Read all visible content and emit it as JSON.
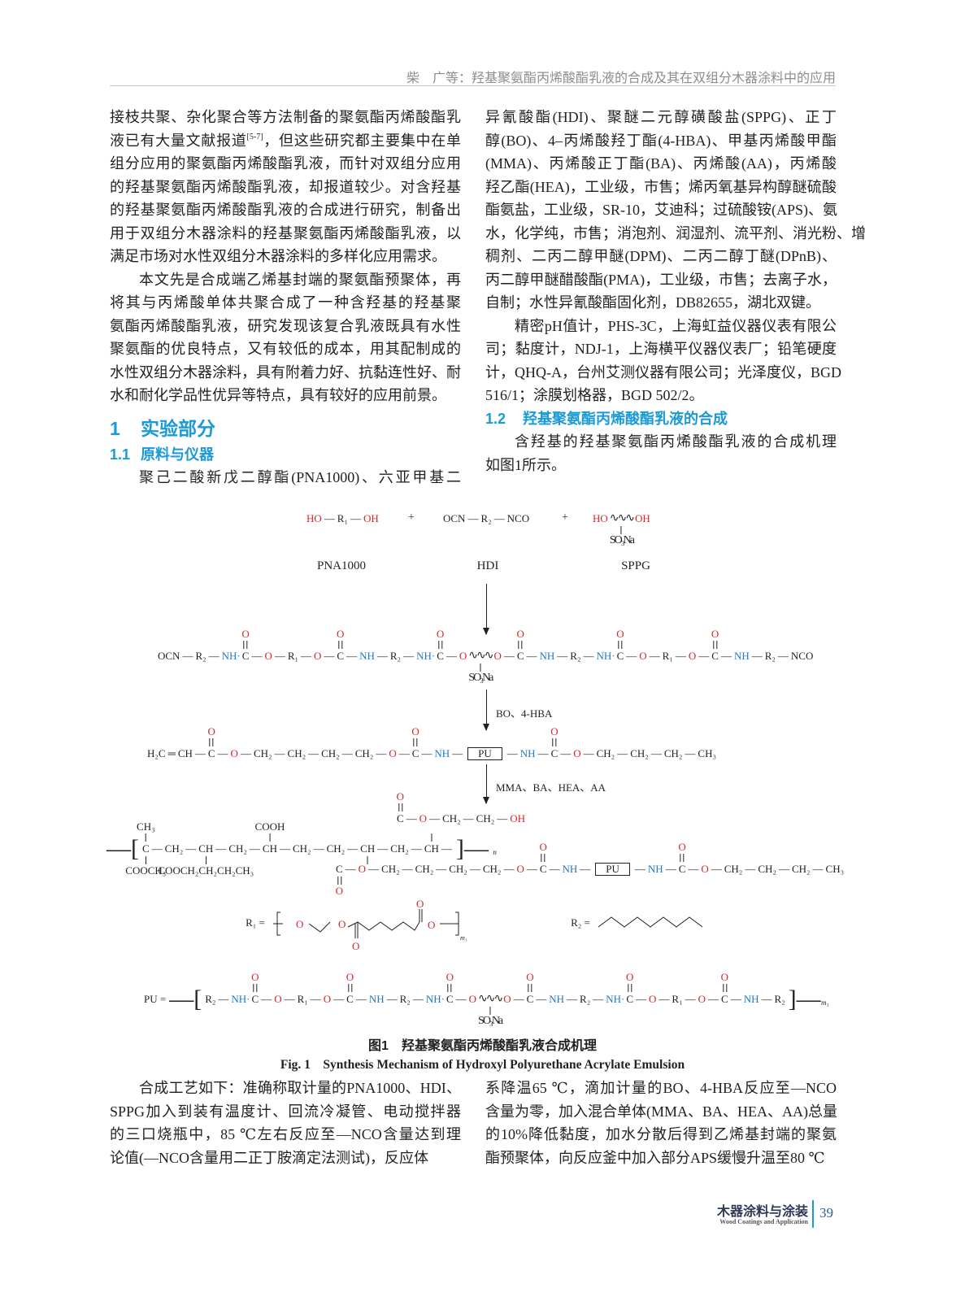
{
  "header": {
    "running_title": "柴　广等：羟基聚氨酯丙烯酸酯乳液的合成及其在双组分木器涂料中的应用"
  },
  "left_column": {
    "paragraphs": [
      {
        "indent": false,
        "lines": [
          "接枝共聚、杂化聚合等方法制备的聚氨酯丙烯酸酯乳",
          "液已有大量文献报道[5-7]，但这些研究都主要集中在单",
          "组分应用的聚氨酯丙烯酸酯乳液，而针对双组分应用",
          "的羟基聚氨酯丙烯酸酯乳液，却报道较少。对含羟基",
          "的羟基聚氨酯丙烯酸酯乳液的合成进行研究，制备出",
          "用于双组分木器涂料的羟基聚氨酯丙烯酸酯乳液，以",
          "满足市场对水性双组分木器涂料的多样化应用需求。"
        ]
      },
      {
        "indent": true,
        "lines": [
          "本文先是合成端乙烯基封端的聚氨酯预聚体，再",
          "将其与丙烯酸单体共聚合成了一种含羟基的羟基聚",
          "氨酯丙烯酸酯乳液，研究发现该复合乳液既具有水性",
          "聚氨酯的优良特点，又有较低的成本，用其配制成的",
          "水性双组分木器涂料，具有附着力好、抗黏连性好、耐",
          "水和耐化学品性优异等特点，具有较好的应用前景。"
        ]
      }
    ],
    "section_1": {
      "number": "1",
      "title": "实验部分"
    },
    "section_1_1": {
      "number": "1.1",
      "title": "原料与仪器"
    },
    "para_materials_start": "聚己二酸新戊二醇酯(PNA1000)、六亚甲基二"
  },
  "right_column": {
    "paragraphs": [
      {
        "indent": false,
        "lines": [
          "异氰酸酯(HDI)、聚醚二元醇磺酸盐(SPPG)、正丁",
          "醇(BO)、4–丙烯酸羟丁酯(4-HBA)、甲基丙烯酸甲酯",
          "(MMA)、丙烯酸正丁酯(BA)、丙烯酸(AA)，丙烯酸",
          "羟乙酯(HEA)，工业级，市售；烯丙氧基异构醇醚硫酸",
          "酯氨盐，工业级，SR-10，艾迪科；过硫酸铵(APS)、氨",
          "水，化学纯，市售；消泡剂、润湿剂、流平剂、消光粉、增",
          "稠剂、二丙二醇甲醚(DPM)、二丙二醇丁醚(DPnB)、",
          "丙二醇甲醚醋酸酯(PMA)，工业级，市售；去离子水，",
          "自制；水性异氰酸酯固化剂，DB82655，湖北双键。"
        ]
      },
      {
        "indent": true,
        "lines": [
          "精密pH值计，PHS-3C，上海虹益仪器仪表有限公",
          "司；黏度计，NDJ-1，上海横平仪器仪表厂；铅笔硬度",
          "计，QHQ-A，台州艾测仪器有限公司；光泽度仪，BGD",
          "516/1；涂膜划格器，BGD 502/2。"
        ]
      }
    ],
    "section_1_2": {
      "number": "1.2",
      "title": "羟基聚氨酯丙烯酸酯乳液的合成"
    },
    "para_mechanism": {
      "indent": true,
      "lines": [
        "含羟基的羟基聚氨酯丙烯酸酯乳液的合成机理",
        "如图1所示。"
      ]
    }
  },
  "figure": {
    "reactants": [
      [
        {
          "t": "HO",
          "c": "r"
        },
        {
          "t": "—",
          "c": "k"
        },
        {
          "t": "R₁",
          "c": "k"
        },
        {
          "t": "—",
          "c": "k"
        },
        {
          "t": "OH",
          "c": "r"
        }
      ],
      [
        {
          "t": "OCN",
          "c": "k"
        },
        {
          "t": "—",
          "c": "k"
        },
        {
          "t": "R₂",
          "c": "k"
        },
        {
          "t": "—",
          "c": "k"
        },
        {
          "t": "NCO",
          "c": "k"
        }
      ],
      [
        {
          "t": "HO",
          "c": "r"
        },
        {
          "t": "∿∿∿",
          "c": "k",
          "w": 1,
          "db": "s",
          "dn": "SO₃Na"
        },
        {
          "t": "OH",
          "c": "r"
        }
      ]
    ],
    "plus": "+",
    "reactant_labels": [
      "PNA1000",
      "HDI",
      "SPPG"
    ],
    "step_labels": [
      "BO、4-HBA",
      "MMA、BA、HEA、AA"
    ],
    "prepolymer": [
      {
        "t": "OCN"
      },
      {
        "t": "—"
      },
      {
        "t": "R₂"
      },
      {
        "t": "—"
      },
      {
        "t": "NH·",
        "c": "b"
      },
      {
        "t": "C",
        "ub": "d",
        "up": "O"
      },
      {
        "t": "—"
      },
      {
        "t": "O",
        "c": "r"
      },
      {
        "t": "—"
      },
      {
        "t": "R₁"
      },
      {
        "t": "—"
      },
      {
        "t": "O",
        "c": "r"
      },
      {
        "t": "—"
      },
      {
        "t": "C",
        "ub": "d",
        "up": "O"
      },
      {
        "t": "—"
      },
      {
        "t": "NH",
        "c": "b"
      },
      {
        "t": "—"
      },
      {
        "t": "R₂"
      },
      {
        "t": "—"
      },
      {
        "t": "NH·",
        "c": "b"
      },
      {
        "t": "C",
        "ub": "d",
        "up": "O"
      },
      {
        "t": "—"
      },
      {
        "t": "O",
        "c": "r"
      },
      {
        "t": "∿∿∿",
        "w": 1,
        "db": "s",
        "dn": "SO₃Na"
      },
      {
        "t": "O",
        "c": "r"
      },
      {
        "t": "—"
      },
      {
        "t": "C",
        "ub": "d",
        "up": "O"
      },
      {
        "t": "—"
      },
      {
        "t": "NH",
        "c": "b"
      },
      {
        "t": "—"
      },
      {
        "t": "R₂"
      },
      {
        "t": "—"
      },
      {
        "t": "NH·",
        "c": "b"
      },
      {
        "t": "C",
        "ub": "d",
        "up": "O"
      },
      {
        "t": "—"
      },
      {
        "t": "O",
        "c": "r"
      },
      {
        "t": "—"
      },
      {
        "t": "R₁"
      },
      {
        "t": "—"
      },
      {
        "t": "O",
        "c": "r"
      },
      {
        "t": "—"
      },
      {
        "t": "C",
        "ub": "d",
        "up": "O"
      },
      {
        "t": "—"
      },
      {
        "t": "NH",
        "c": "b"
      },
      {
        "t": "—"
      },
      {
        "t": "R₂"
      },
      {
        "t": "—"
      },
      {
        "t": "NCO"
      }
    ],
    "vinyl_prepolymer": [
      {
        "t": "H₂C"
      },
      {
        "t": "═"
      },
      {
        "t": "CH"
      },
      {
        "t": "—"
      },
      {
        "t": "C",
        "ub": "d",
        "up": "O"
      },
      {
        "t": "—"
      },
      {
        "t": "O",
        "c": "r"
      },
      {
        "t": "—"
      },
      {
        "t": "CH₂"
      },
      {
        "t": "—"
      },
      {
        "t": "CH₂"
      },
      {
        "t": "—"
      },
      {
        "t": "CH₂"
      },
      {
        "t": "—"
      },
      {
        "t": "CH₂"
      },
      {
        "t": "—"
      },
      {
        "t": "O",
        "c": "r"
      },
      {
        "t": "—"
      },
      {
        "t": "C",
        "ub": "d",
        "up": "O"
      },
      {
        "t": "—"
      },
      {
        "t": "NH",
        "c": "b"
      },
      {
        "t": "—"
      },
      {
        "t": "PU",
        "box": 1
      },
      {
        "t": "—"
      },
      {
        "t": "NH",
        "c": "b"
      },
      {
        "t": "—"
      },
      {
        "t": "C",
        "ub": "d",
        "up": "O"
      },
      {
        "t": "—"
      },
      {
        "t": "O",
        "c": "r"
      },
      {
        "t": "—"
      },
      {
        "t": "CH₂"
      },
      {
        "t": "—"
      },
      {
        "t": "CH₂"
      },
      {
        "t": "—"
      },
      {
        "t": "CH₂"
      },
      {
        "t": "—"
      },
      {
        "t": "CH₃"
      }
    ],
    "polymer_main": [
      {
        "t": "—["
      },
      {
        "t": "C",
        "ub": "s",
        "up": "CH₃",
        "db": "s",
        "dn": "COOCH₃"
      },
      {
        "t": "—"
      },
      {
        "t": "CH₂"
      },
      {
        "t": "—"
      },
      {
        "t": "CH",
        "db": "s",
        "dn": "COOCH₂CH₂CH₂CH₃"
      },
      {
        "t": "—"
      },
      {
        "t": "CH₂"
      },
      {
        "t": "—"
      },
      {
        "t": "CH",
        "ub": "s",
        "up": "COOH"
      },
      {
        "t": "—"
      },
      {
        "t": "CH₂"
      },
      {
        "t": "—"
      },
      {
        "t": "CH₂"
      },
      {
        "t": "—"
      },
      {
        "t": "CH",
        "db": "s",
        "dn": ""
      },
      {
        "t": "—"
      },
      {
        "t": "CH₂"
      },
      {
        "t": "—"
      },
      {
        "t": "CH",
        "ub": "s",
        "up": ""
      },
      {
        "t": "—"
      },
      {
        "t": "]—",
        "sub": "n"
      }
    ],
    "polymer_side_upper": [
      {
        "t": "C",
        "ub": "d",
        "up": "O"
      },
      {
        "t": "—"
      },
      {
        "t": "O",
        "c": "r"
      },
      {
        "t": "—"
      },
      {
        "t": "CH₂"
      },
      {
        "t": "—"
      },
      {
        "t": "CH₂"
      },
      {
        "t": "—"
      },
      {
        "t": "OH",
        "c": "r"
      }
    ],
    "polymer_side_lower": [
      {
        "t": "C",
        "db": "d",
        "dn": "O"
      },
      {
        "t": "—"
      },
      {
        "t": "O",
        "c": "r"
      },
      {
        "t": "—"
      },
      {
        "t": "CH₂"
      },
      {
        "t": "—"
      },
      {
        "t": "CH₂"
      },
      {
        "t": "—"
      },
      {
        "t": "CH₂"
      },
      {
        "t": "—"
      },
      {
        "t": "CH₂"
      },
      {
        "t": "—"
      },
      {
        "t": "O",
        "c": "r"
      },
      {
        "t": "—"
      },
      {
        "t": "C",
        "ub": "d",
        "up": "O"
      },
      {
        "t": "—"
      },
      {
        "t": "NH",
        "c": "b"
      },
      {
        "t": "—"
      },
      {
        "t": "PU",
        "box": 1
      },
      {
        "t": "—"
      },
      {
        "t": "NH",
        "c": "b"
      },
      {
        "t": "—"
      },
      {
        "t": "C",
        "ub": "d",
        "up": "O"
      },
      {
        "t": "—"
      },
      {
        "t": "O",
        "c": "r"
      },
      {
        "t": "—"
      },
      {
        "t": "CH₂"
      },
      {
        "t": "—"
      },
      {
        "t": "CH₂"
      },
      {
        "t": "—"
      },
      {
        "t": "CH₂"
      },
      {
        "t": "—"
      },
      {
        "t": "CH₃"
      }
    ],
    "r1_label": "R₁ =",
    "r1_atoms": {
      "o": "O",
      "sub": "m₁"
    },
    "r2_label": "R₂ =",
    "pu_definition": [
      {
        "t": "PU ="
      },
      {
        "t": "—["
      },
      {
        "t": "R₂"
      },
      {
        "t": "—"
      },
      {
        "t": "NH·",
        "c": "b"
      },
      {
        "t": "C",
        "ub": "d",
        "up": "O"
      },
      {
        "t": "—"
      },
      {
        "t": "O",
        "c": "r"
      },
      {
        "t": "—"
      },
      {
        "t": "R₁"
      },
      {
        "t": "—"
      },
      {
        "t": "O",
        "c": "r"
      },
      {
        "t": "—"
      },
      {
        "t": "C",
        "ub": "d",
        "up": "O"
      },
      {
        "t": "—"
      },
      {
        "t": "NH",
        "c": "b"
      },
      {
        "t": "—"
      },
      {
        "t": "R₂"
      },
      {
        "t": "—"
      },
      {
        "t": "NH·",
        "c": "b"
      },
      {
        "t": "C",
        "ub": "d",
        "up": "O"
      },
      {
        "t": "—"
      },
      {
        "t": "O",
        "c": "r"
      },
      {
        "t": "∿∿∿",
        "w": 1,
        "db": "s",
        "dn": "SO₃Na"
      },
      {
        "t": "O",
        "c": "r"
      },
      {
        "t": "—"
      },
      {
        "t": "C",
        "ub": "d",
        "up": "O"
      },
      {
        "t": "—"
      },
      {
        "t": "NH",
        "c": "b"
      },
      {
        "t": "—"
      },
      {
        "t": "R₂"
      },
      {
        "t": "—"
      },
      {
        "t": "NH·",
        "c": "b"
      },
      {
        "t": "C",
        "ub": "d",
        "up": "O"
      },
      {
        "t": "—"
      },
      {
        "t": "O",
        "c": "r"
      },
      {
        "t": "—"
      },
      {
        "t": "R₁"
      },
      {
        "t": "—"
      },
      {
        "t": "O",
        "c": "r"
      },
      {
        "t": "—"
      },
      {
        "t": "C",
        "ub": "d",
        "up": "O"
      },
      {
        "t": "—"
      },
      {
        "t": "NH",
        "c": "b"
      },
      {
        "t": "—"
      },
      {
        "t": "R₂"
      },
      {
        "t": "]—",
        "sub": "m₁"
      }
    ],
    "caption_cn": "图1　羟基聚氨酯丙烯酸酯乳液合成机理",
    "caption_en": "Fig. 1　Synthesis Mechanism of Hydroxyl Polyurethane Acrylate Emulsion",
    "colors": {
      "oxygen": "#d6252c",
      "nitrogen": "#1f7ac4"
    }
  },
  "bottom_left": {
    "indent": true,
    "lines": [
      "合成工艺如下：准确称取计量的PNA1000、HDI、",
      "SPPG加入到装有温度计、回流冷凝管、电动搅拌器",
      "的三口烧瓶中，85 ℃左右反应至—NCO含量达到理",
      "论值(—NCO含量用二正丁胺滴定法测试)，反应体"
    ]
  },
  "bottom_right": {
    "indent": false,
    "lines": [
      "系降温65 ℃，滴加计量的BO、4-HBA反应至—NCO",
      "含量为零，加入混合单体(MMA、BA、HEA、AA)总量",
      "的10%降低黏度，加水分散后得到乙烯基封端的聚氨",
      "酯预聚体，向反应釜中加入部分APS缓慢升温至80 ℃"
    ]
  },
  "footer": {
    "journal_cn": "木器涂料与涂装",
    "journal_en": "Wood Coatings and Application",
    "page_number": "39"
  },
  "colors": {
    "heading_blue": "#1a9ad6",
    "text": "#231f20"
  }
}
